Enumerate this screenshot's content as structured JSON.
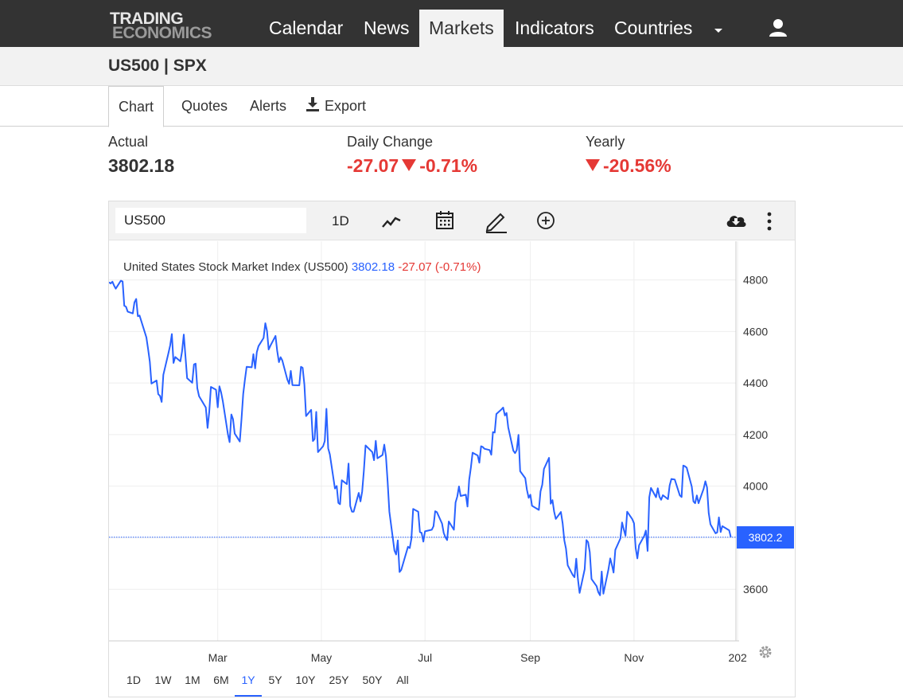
{
  "brand": {
    "line1": "TRADING",
    "line2": "ECONOMICS"
  },
  "nav": {
    "items": [
      {
        "label": "Calendar",
        "active": false
      },
      {
        "label": "News",
        "active": false
      },
      {
        "label": "Markets",
        "active": true
      },
      {
        "label": "Indicators",
        "active": false
      },
      {
        "label": "Countries",
        "active": false
      }
    ],
    "more_icon": "caret-down-icon",
    "user_icon": "user-icon"
  },
  "page": {
    "title": "US500 | SPX"
  },
  "tabs": [
    {
      "label": "Chart",
      "active": true
    },
    {
      "label": "Quotes",
      "active": false
    },
    {
      "label": "Alerts",
      "active": false
    },
    {
      "label": "Export",
      "active": false,
      "icon": "download-icon"
    }
  ],
  "stats": {
    "actual": {
      "label": "Actual",
      "value": "3802.18"
    },
    "daily": {
      "label": "Daily Change",
      "change": "-27.07",
      "percent": "-0.71%"
    },
    "yearly": {
      "label": "Yearly",
      "percent": "-20.56%"
    }
  },
  "toolbar": {
    "symbol": "US500",
    "interval": "1D",
    "icons": [
      "chart-type-icon",
      "calendar-icon",
      "draw-pencil-icon",
      "add-compare-icon",
      "cloud-download-icon",
      "more-vertical-icon"
    ]
  },
  "legend": {
    "name": "United States Stock Market Index (US500)",
    "price": "3802.18",
    "change": "-27.07 (-0.71%)"
  },
  "price_tag": "3802.2",
  "ranges": [
    {
      "label": "1D",
      "active": false
    },
    {
      "label": "1W",
      "active": false
    },
    {
      "label": "1M",
      "active": false
    },
    {
      "label": "6M",
      "active": false
    },
    {
      "label": "1Y",
      "active": true
    },
    {
      "label": "5Y",
      "active": false
    },
    {
      "label": "10Y",
      "active": false
    },
    {
      "label": "25Y",
      "active": false
    },
    {
      "label": "50Y",
      "active": false
    },
    {
      "label": "All",
      "active": false
    }
  ],
  "colors": {
    "line": "#2962ff",
    "negative": "#e53935",
    "nav_bg": "#333333"
  },
  "chart_data": {
    "type": "line",
    "title": "United States Stock Market Index (US500)",
    "ylim": [
      3400,
      4950
    ],
    "y_ticks": [
      3600,
      3800,
      4000,
      4200,
      4400,
      4600,
      4800
    ],
    "x_ticks": [
      "Mar",
      "May",
      "Jul",
      "Sep",
      "Nov",
      "202"
    ],
    "x_range": [
      "2021-12-27",
      "2022-12-31"
    ],
    "last_value": 3802.18,
    "series": [
      {
        "points": [
          [
            "2021-12-27",
            4791
          ],
          [
            "2021-12-28",
            4786
          ],
          [
            "2021-12-29",
            4793
          ],
          [
            "2021-12-30",
            4778
          ],
          [
            "2021-12-31",
            4766
          ],
          [
            "2022-01-03",
            4797
          ],
          [
            "2022-01-04",
            4794
          ],
          [
            "2022-01-05",
            4700
          ],
          [
            "2022-01-06",
            4696
          ],
          [
            "2022-01-07",
            4677
          ],
          [
            "2022-01-10",
            4670
          ],
          [
            "2022-01-11",
            4713
          ],
          [
            "2022-01-12",
            4726
          ],
          [
            "2022-01-13",
            4659
          ],
          [
            "2022-01-14",
            4662
          ],
          [
            "2022-01-18",
            4577
          ],
          [
            "2022-01-19",
            4533
          ],
          [
            "2022-01-20",
            4483
          ],
          [
            "2022-01-21",
            4398
          ],
          [
            "2022-01-24",
            4410
          ],
          [
            "2022-01-25",
            4357
          ],
          [
            "2022-01-26",
            4350
          ],
          [
            "2022-01-27",
            4327
          ],
          [
            "2022-01-28",
            4432
          ],
          [
            "2022-01-31",
            4516
          ],
          [
            "2022-02-01",
            4546
          ],
          [
            "2022-02-02",
            4590
          ],
          [
            "2022-02-03",
            4478
          ],
          [
            "2022-02-04",
            4501
          ],
          [
            "2022-02-07",
            4484
          ],
          [
            "2022-02-08",
            4522
          ],
          [
            "2022-02-09",
            4588
          ],
          [
            "2022-02-10",
            4504
          ],
          [
            "2022-02-11",
            4419
          ],
          [
            "2022-02-14",
            4401
          ],
          [
            "2022-02-15",
            4472
          ],
          [
            "2022-02-16",
            4475
          ],
          [
            "2022-02-17",
            4380
          ],
          [
            "2022-02-18",
            4349
          ],
          [
            "2022-02-22",
            4305
          ],
          [
            "2022-02-23",
            4226
          ],
          [
            "2022-02-24",
            4288
          ],
          [
            "2022-02-25",
            4385
          ],
          [
            "2022-02-28",
            4374
          ],
          [
            "2022-03-01",
            4306
          ],
          [
            "2022-03-02",
            4387
          ],
          [
            "2022-03-03",
            4364
          ],
          [
            "2022-03-04",
            4329
          ],
          [
            "2022-03-07",
            4201
          ],
          [
            "2022-03-08",
            4171
          ],
          [
            "2022-03-09",
            4278
          ],
          [
            "2022-03-10",
            4260
          ],
          [
            "2022-03-11",
            4204
          ],
          [
            "2022-03-14",
            4173
          ],
          [
            "2022-03-15",
            4262
          ],
          [
            "2022-03-16",
            4358
          ],
          [
            "2022-03-17",
            4412
          ],
          [
            "2022-03-18",
            4463
          ],
          [
            "2022-03-21",
            4461
          ],
          [
            "2022-03-22",
            4512
          ],
          [
            "2022-03-23",
            4457
          ],
          [
            "2022-03-24",
            4520
          ],
          [
            "2022-03-25",
            4543
          ],
          [
            "2022-03-28",
            4575
          ],
          [
            "2022-03-29",
            4632
          ],
          [
            "2022-03-30",
            4602
          ],
          [
            "2022-03-31",
            4530
          ],
          [
            "2022-04-01",
            4545
          ],
          [
            "2022-04-04",
            4583
          ],
          [
            "2022-04-05",
            4525
          ],
          [
            "2022-04-06",
            4481
          ],
          [
            "2022-04-07",
            4500
          ],
          [
            "2022-04-08",
            4488
          ],
          [
            "2022-04-11",
            4413
          ],
          [
            "2022-04-12",
            4397
          ],
          [
            "2022-04-13",
            4447
          ],
          [
            "2022-04-14",
            4392
          ],
          [
            "2022-04-18",
            4391
          ],
          [
            "2022-04-19",
            4463
          ],
          [
            "2022-04-20",
            4459
          ],
          [
            "2022-04-21",
            4394
          ],
          [
            "2022-04-22",
            4272
          ],
          [
            "2022-04-25",
            4296
          ],
          [
            "2022-04-26",
            4175
          ],
          [
            "2022-04-27",
            4183
          ],
          [
            "2022-04-28",
            4288
          ],
          [
            "2022-04-29",
            4132
          ],
          [
            "2022-05-02",
            4155
          ],
          [
            "2022-05-03",
            4175
          ],
          [
            "2022-05-04",
            4300
          ],
          [
            "2022-05-05",
            4147
          ],
          [
            "2022-05-06",
            4123
          ],
          [
            "2022-05-09",
            3991
          ],
          [
            "2022-05-10",
            4001
          ],
          [
            "2022-05-11",
            3935
          ],
          [
            "2022-05-12",
            3930
          ],
          [
            "2022-05-13",
            4023
          ],
          [
            "2022-05-16",
            4008
          ],
          [
            "2022-05-17",
            4088
          ],
          [
            "2022-05-18",
            3923
          ],
          [
            "2022-05-19",
            3901
          ],
          [
            "2022-05-20",
            3901
          ],
          [
            "2022-05-23",
            3974
          ],
          [
            "2022-05-24",
            3941
          ],
          [
            "2022-05-25",
            3979
          ],
          [
            "2022-05-26",
            4058
          ],
          [
            "2022-05-27",
            4158
          ],
          [
            "2022-05-31",
            4132
          ],
          [
            "2022-06-01",
            4101
          ],
          [
            "2022-06-02",
            4176
          ],
          [
            "2022-06-03",
            4108
          ],
          [
            "2022-06-06",
            4121
          ],
          [
            "2022-06-07",
            4161
          ],
          [
            "2022-06-08",
            4116
          ],
          [
            "2022-06-09",
            4018
          ],
          [
            "2022-06-10",
            3901
          ],
          [
            "2022-06-13",
            3750
          ],
          [
            "2022-06-14",
            3735
          ],
          [
            "2022-06-15",
            3790
          ],
          [
            "2022-06-16",
            3667
          ],
          [
            "2022-06-17",
            3675
          ],
          [
            "2022-06-21",
            3765
          ],
          [
            "2022-06-22",
            3760
          ],
          [
            "2022-06-23",
            3796
          ],
          [
            "2022-06-24",
            3912
          ],
          [
            "2022-06-27",
            3901
          ],
          [
            "2022-06-28",
            3822
          ],
          [
            "2022-06-29",
            3819
          ],
          [
            "2022-06-30",
            3785
          ],
          [
            "2022-07-01",
            3825
          ],
          [
            "2022-07-05",
            3831
          ],
          [
            "2022-07-06",
            3845
          ],
          [
            "2022-07-07",
            3903
          ],
          [
            "2022-07-08",
            3899
          ],
          [
            "2022-07-11",
            3855
          ],
          [
            "2022-07-12",
            3819
          ],
          [
            "2022-07-13",
            3802
          ],
          [
            "2022-07-14",
            3791
          ],
          [
            "2022-07-15",
            3863
          ],
          [
            "2022-07-18",
            3831
          ],
          [
            "2022-07-19",
            3937
          ],
          [
            "2022-07-20",
            3960
          ],
          [
            "2022-07-21",
            3999
          ],
          [
            "2022-07-22",
            3962
          ],
          [
            "2022-07-25",
            3967
          ],
          [
            "2022-07-26",
            3921
          ],
          [
            "2022-07-27",
            4024
          ],
          [
            "2022-07-28",
            4073
          ],
          [
            "2022-07-29",
            4130
          ],
          [
            "2022-08-01",
            4119
          ],
          [
            "2022-08-02",
            4091
          ],
          [
            "2022-08-03",
            4155
          ],
          [
            "2022-08-04",
            4152
          ],
          [
            "2022-08-05",
            4145
          ],
          [
            "2022-08-08",
            4140
          ],
          [
            "2022-08-09",
            4122
          ],
          [
            "2022-08-10",
            4210
          ],
          [
            "2022-08-11",
            4208
          ],
          [
            "2022-08-12",
            4280
          ],
          [
            "2022-08-15",
            4298
          ],
          [
            "2022-08-16",
            4305
          ],
          [
            "2022-08-17",
            4274
          ],
          [
            "2022-08-18",
            4284
          ],
          [
            "2022-08-19",
            4228
          ],
          [
            "2022-08-22",
            4138
          ],
          [
            "2022-08-23",
            4128
          ],
          [
            "2022-08-24",
            4140
          ],
          [
            "2022-08-25",
            4199
          ],
          [
            "2022-08-26",
            4058
          ],
          [
            "2022-08-29",
            4031
          ],
          [
            "2022-08-30",
            3986
          ],
          [
            "2022-08-31",
            3955
          ],
          [
            "2022-09-01",
            3967
          ],
          [
            "2022-09-02",
            3924
          ],
          [
            "2022-09-06",
            3908
          ],
          [
            "2022-09-07",
            3980
          ],
          [
            "2022-09-08",
            4006
          ],
          [
            "2022-09-09",
            4067
          ],
          [
            "2022-09-12",
            4110
          ],
          [
            "2022-09-13",
            3932
          ],
          [
            "2022-09-14",
            3946
          ],
          [
            "2022-09-15",
            3901
          ],
          [
            "2022-09-16",
            3873
          ],
          [
            "2022-09-19",
            3900
          ],
          [
            "2022-09-20",
            3856
          ],
          [
            "2022-09-21",
            3790
          ],
          [
            "2022-09-22",
            3758
          ],
          [
            "2022-09-23",
            3693
          ],
          [
            "2022-09-26",
            3655
          ],
          [
            "2022-09-27",
            3647
          ],
          [
            "2022-09-28",
            3719
          ],
          [
            "2022-09-29",
            3640
          ],
          [
            "2022-09-30",
            3586
          ],
          [
            "2022-10-03",
            3678
          ],
          [
            "2022-10-04",
            3791
          ],
          [
            "2022-10-05",
            3783
          ],
          [
            "2022-10-06",
            3744
          ],
          [
            "2022-10-07",
            3640
          ],
          [
            "2022-10-10",
            3612
          ],
          [
            "2022-10-11",
            3589
          ],
          [
            "2022-10-12",
            3577
          ],
          [
            "2022-10-13",
            3669
          ],
          [
            "2022-10-14",
            3583
          ],
          [
            "2022-10-17",
            3678
          ],
          [
            "2022-10-18",
            3720
          ],
          [
            "2022-10-19",
            3695
          ],
          [
            "2022-10-20",
            3665
          ],
          [
            "2022-10-21",
            3753
          ],
          [
            "2022-10-24",
            3797
          ],
          [
            "2022-10-25",
            3859
          ],
          [
            "2022-10-26",
            3831
          ],
          [
            "2022-10-27",
            3808
          ],
          [
            "2022-10-28",
            3901
          ],
          [
            "2022-10-31",
            3872
          ],
          [
            "2022-11-01",
            3856
          ],
          [
            "2022-11-02",
            3760
          ],
          [
            "2022-11-03",
            3720
          ],
          [
            "2022-11-04",
            3771
          ],
          [
            "2022-11-07",
            3807
          ],
          [
            "2022-11-08",
            3828
          ],
          [
            "2022-11-09",
            3749
          ],
          [
            "2022-11-10",
            3957
          ],
          [
            "2022-11-11",
            3993
          ],
          [
            "2022-11-14",
            3957
          ],
          [
            "2022-11-15",
            3992
          ],
          [
            "2022-11-16",
            3959
          ],
          [
            "2022-11-17",
            3947
          ],
          [
            "2022-11-18",
            3965
          ],
          [
            "2022-11-21",
            3950
          ],
          [
            "2022-11-22",
            4003
          ],
          [
            "2022-11-23",
            4028
          ],
          [
            "2022-11-25",
            4026
          ],
          [
            "2022-11-28",
            3964
          ],
          [
            "2022-11-29",
            3958
          ],
          [
            "2022-11-30",
            4080
          ],
          [
            "2022-12-01",
            4077
          ],
          [
            "2022-12-02",
            4072
          ],
          [
            "2022-12-05",
            3998
          ],
          [
            "2022-12-06",
            3941
          ],
          [
            "2022-12-07",
            3934
          ],
          [
            "2022-12-08",
            3964
          ],
          [
            "2022-12-09",
            3934
          ],
          [
            "2022-12-12",
            3990
          ],
          [
            "2022-12-13",
            4019
          ],
          [
            "2022-12-14",
            3995
          ],
          [
            "2022-12-15",
            3896
          ],
          [
            "2022-12-16",
            3852
          ],
          [
            "2022-12-19",
            3817
          ],
          [
            "2022-12-20",
            3821
          ],
          [
            "2022-12-21",
            3879
          ],
          [
            "2022-12-22",
            3822
          ],
          [
            "2022-12-23",
            3845
          ],
          [
            "2022-12-27",
            3829
          ],
          [
            "2022-12-28",
            3802
          ]
        ]
      }
    ]
  }
}
